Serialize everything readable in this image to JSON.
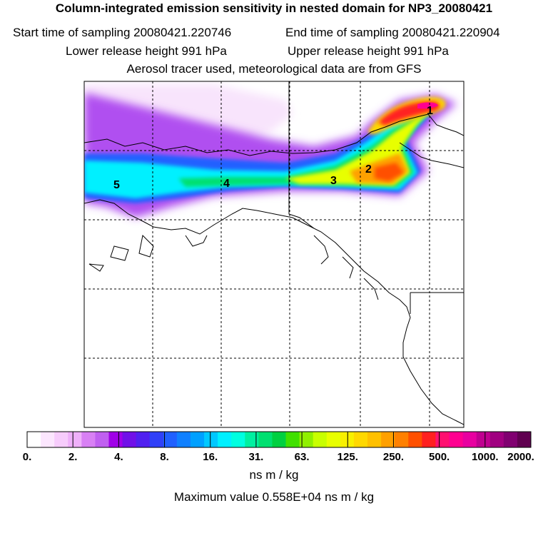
{
  "header": {
    "title": "Column-integrated emission sensitivity in nested domain for NP3_20080421",
    "start_time": "Start time of sampling 20080421.220746",
    "end_time": "End time of sampling 20080421.220904",
    "lower_release": "Lower release height  991 hPa",
    "upper_release": "Upper release height  991 hPa",
    "tracer_note": "Aerosol tracer used, meteorological data are from GFS"
  },
  "map": {
    "markers": [
      "1",
      "2",
      "3",
      "4",
      "5"
    ],
    "grid": "dashed",
    "coastline_color": "#000000"
  },
  "colorbar": {
    "tick_labels": [
      "0.",
      "2.",
      "4.",
      "8.",
      "16.",
      "31.",
      "63.",
      "125.",
      "250.",
      "500.",
      "1000.",
      "2000."
    ],
    "colors": [
      "#ffffff",
      "#fce6fe",
      "#f7ccfc",
      "#efb0fa",
      "#d880f4",
      "#c060f0",
      "#a000e8",
      "#7010e8",
      "#5020f0",
      "#3040f8",
      "#2060ff",
      "#1080ff",
      "#00a0ff",
      "#00c8ff",
      "#00f0ff",
      "#00ffe0",
      "#00f0a0",
      "#00e070",
      "#00d040",
      "#40e000",
      "#90f000",
      "#c8ff00",
      "#e8ff00",
      "#f8f000",
      "#ffd800",
      "#ffc000",
      "#ffa000",
      "#ff8000",
      "#ff5000",
      "#ff2020",
      "#ff1070",
      "#ff0090",
      "#e800a0",
      "#c00090",
      "#a00080",
      "#800070",
      "#600050"
    ],
    "unit": "ns m / kg"
  },
  "footer": {
    "max_value": "Maximum value  0.558E+04 ns m / kg"
  }
}
